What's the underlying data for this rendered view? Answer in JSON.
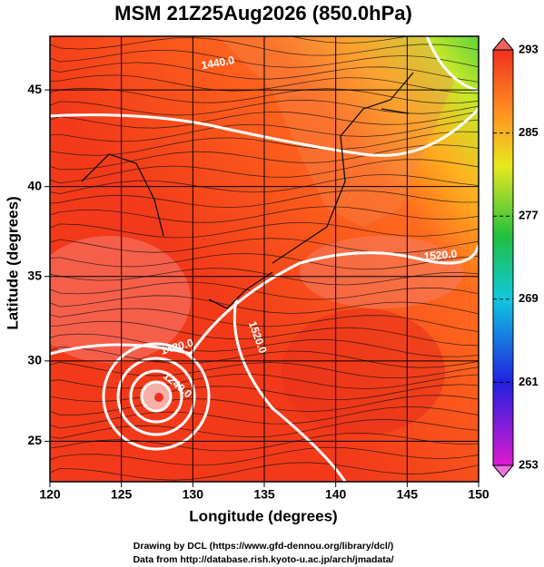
{
  "chart_data": {
    "type": "map",
    "title": "MSM 21Z25Aug2026 (850.0hPa)",
    "x_label": "Longitude (degrees)",
    "y_label": "Latitude  (degrees)",
    "projection": "mercator",
    "xlim": [
      120,
      150
    ],
    "xticks": [
      120,
      125,
      130,
      135,
      140,
      145,
      150
    ],
    "ylim": [
      22.4,
      47.6
    ],
    "yticks": [
      25,
      30,
      35,
      40,
      45
    ],
    "grid": true,
    "colorbar": {
      "lim": [
        253,
        293
      ],
      "ticks": [
        253,
        261,
        269,
        277,
        285,
        293
      ]
    },
    "contour_labels": [
      "1440.0",
      "1520.0",
      "1480.0",
      "1520.0",
      "1240.0"
    ],
    "footer": [
      "Drawing by DCL (https://www.gfd-dennou.org/library/dcl/)",
      "Data from http://database.rish.kyoto-u.ac.jp/arch/jmadata/"
    ]
  }
}
